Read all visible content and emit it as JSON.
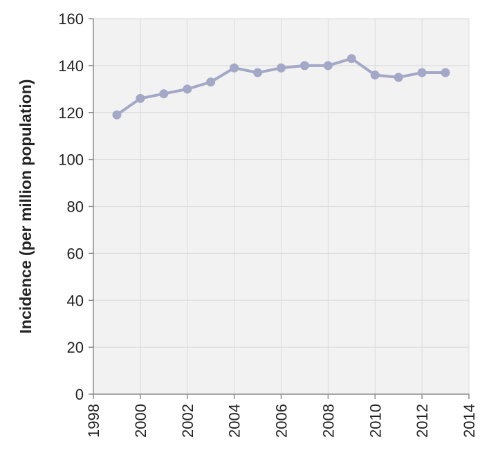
{
  "chart_data": {
    "type": "line",
    "title": "",
    "xlabel": "",
    "ylabel": "Incidence (per million population)",
    "xlim": [
      1998,
      2014
    ],
    "ylim": [
      0,
      160
    ],
    "x_ticks": [
      1998,
      2000,
      2002,
      2004,
      2006,
      2008,
      2010,
      2012,
      2014
    ],
    "y_ticks": [
      0,
      20,
      40,
      60,
      80,
      100,
      120,
      140,
      160
    ],
    "grid": true,
    "legend": "none",
    "series": [
      {
        "color": "#a3a8c6",
        "x": [
          1999,
          2000,
          2001,
          2002,
          2003,
          2004,
          2005,
          2006,
          2007,
          2008,
          2009,
          2010,
          2011,
          2012,
          2013
        ],
        "y": [
          119,
          126,
          128,
          130,
          133,
          139,
          137,
          139,
          140,
          140,
          143,
          136,
          135,
          137,
          137
        ]
      }
    ]
  },
  "colors": {
    "plot_background": "#f2f2f2",
    "grid": "#d9d9d9",
    "axis": "#8c8c8c"
  }
}
